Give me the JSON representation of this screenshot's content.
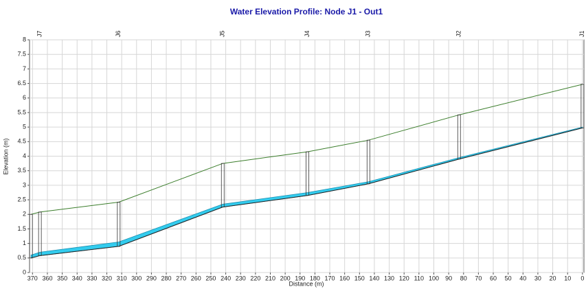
{
  "chart_data": {
    "type": "profile",
    "title": "Water Elevation Profile: Node J1 - Out1",
    "xlabel": "Distance (m)",
    "ylabel": "Elevation (m)",
    "x": [
      371,
      365,
      312,
      242,
      185,
      144,
      83,
      0
    ],
    "node_labels": [
      null,
      "J7",
      "J6",
      "J5",
      "J4",
      "J3",
      "J2",
      "J1"
    ],
    "series": [
      {
        "color": "#3a7d2a",
        "values": [
          2.0,
          2.08,
          2.42,
          3.75,
          4.15,
          4.55,
          5.42,
          6.47
        ]
      },
      {
        "color": "#202020",
        "values": [
          0.5,
          0.58,
          0.9,
          2.25,
          2.65,
          3.05,
          3.9,
          4.97
        ]
      },
      {
        "color": "#33ccee",
        "values": [
          0.6,
          0.7,
          1.05,
          2.35,
          2.75,
          3.12,
          3.95,
          5.0
        ]
      }
    ],
    "xlim": [
      372,
      -1
    ],
    "xticks": [
      370,
      360,
      350,
      340,
      330,
      320,
      310,
      300,
      290,
      280,
      270,
      260,
      250,
      240,
      230,
      220,
      210,
      200,
      190,
      180,
      170,
      160,
      150,
      140,
      130,
      120,
      110,
      100,
      90,
      80,
      70,
      60,
      50,
      40,
      30,
      20,
      10,
      0
    ],
    "ylim": [
      0,
      8
    ],
    "yticks": [
      0,
      0.5,
      1,
      1.5,
      2,
      2.5,
      3,
      3.5,
      4,
      4.5,
      5,
      5.5,
      6,
      6.5,
      7,
      7.5,
      8
    ],
    "grid": true
  }
}
